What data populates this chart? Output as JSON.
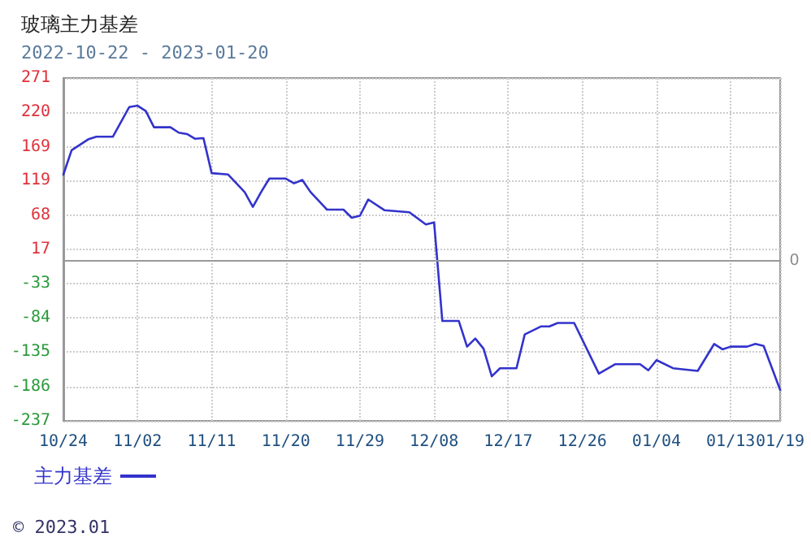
{
  "chart_data": {
    "type": "line",
    "title": "玻璃主力基差",
    "subtitle": "2022-10-22 - 2023-01-20",
    "x": [
      "2022-10-24",
      "2022-10-25",
      "2022-10-27",
      "2022-10-28",
      "2022-10-30",
      "2022-11-01",
      "2022-11-02",
      "2022-11-03",
      "2022-11-04",
      "2022-11-06",
      "2022-11-07",
      "2022-11-08",
      "2022-11-09",
      "2022-11-10",
      "2022-11-11",
      "2022-11-13",
      "2022-11-15",
      "2022-11-16",
      "2022-11-17",
      "2022-11-18",
      "2022-11-20",
      "2022-11-21",
      "2022-11-22",
      "2022-11-23",
      "2022-11-25",
      "2022-11-27",
      "2022-11-28",
      "2022-11-29",
      "2022-11-30",
      "2022-12-02",
      "2022-12-05",
      "2022-12-07",
      "2022-12-08",
      "2022-12-09",
      "2022-12-11",
      "2022-12-12",
      "2022-12-13",
      "2022-12-14",
      "2022-12-15",
      "2022-12-16",
      "2022-12-18",
      "2022-12-19",
      "2022-12-21",
      "2022-12-22",
      "2022-12-23",
      "2022-12-25",
      "2022-12-28",
      "2022-12-30",
      "2023-01-02",
      "2023-01-03",
      "2023-01-04",
      "2023-01-06",
      "2023-01-09",
      "2023-01-11",
      "2023-01-12",
      "2023-01-13",
      "2023-01-15",
      "2023-01-16",
      "2023-01-17",
      "2023-01-19"
    ],
    "series": [
      {
        "name": "主力基差",
        "color": "#3333cc",
        "values": [
          128,
          164,
          180,
          184,
          184,
          228,
          230,
          222,
          198,
          198,
          190,
          188,
          181,
          182,
          130,
          128,
          102,
          80,
          102,
          122,
          122,
          115,
          120,
          102,
          76,
          76,
          64,
          67,
          91,
          75,
          72,
          54,
          57,
          -89,
          -89,
          -127,
          -115,
          -130,
          -171,
          -159,
          -159,
          -109,
          -97,
          -97,
          -92,
          -92,
          -167,
          -153,
          -153,
          -162,
          -147,
          -159,
          -163,
          -123,
          -131,
          -127,
          -127,
          -123,
          -126,
          -191
        ]
      }
    ],
    "xlim": [
      "2022-10-24",
      "2023-01-19"
    ],
    "xticks": [
      {
        "value": "2022-10-24",
        "label": "10/24"
      },
      {
        "value": "2022-11-02",
        "label": "11/02"
      },
      {
        "value": "2022-11-11",
        "label": "11/11"
      },
      {
        "value": "2022-11-20",
        "label": "11/20"
      },
      {
        "value": "2022-11-29",
        "label": "11/29"
      },
      {
        "value": "2022-12-08",
        "label": "12/08"
      },
      {
        "value": "2022-12-17",
        "label": "12/17"
      },
      {
        "value": "2022-12-26",
        "label": "12/26"
      },
      {
        "value": "2023-01-04",
        "label": "01/04"
      },
      {
        "value": "2023-01-13",
        "label": "01/13"
      },
      {
        "value": "2023-01-19",
        "label": "01/19"
      }
    ],
    "ylim": [
      -237,
      271
    ],
    "yticks": [
      -237,
      -186,
      -135,
      -84,
      -33,
      17,
      68,
      119,
      169,
      220,
      271
    ],
    "ref_lines": [
      {
        "axis": "y",
        "value": 0,
        "label": "0",
        "color": "#999999"
      }
    ],
    "annotations": [
      "© 2023.01"
    ],
    "grid": true,
    "legend": "bottom left",
    "marker": "none",
    "line_style": "solid"
  }
}
